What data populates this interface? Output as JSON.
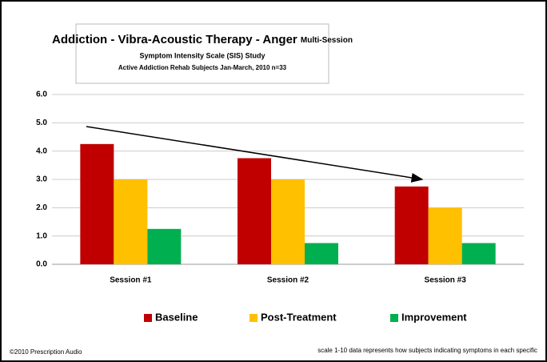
{
  "chart_data": {
    "type": "bar",
    "title": "Addiction - Vibra-Acoustic Therapy - Anger",
    "title_suffix": "Multi-Session",
    "subtitle": [
      "Symptom Intensity Scale (SIS) Study",
      "Active Addiction Rehab Subjects  Jan-March, 2010  n=33"
    ],
    "categories": [
      "Session #1",
      "Session #2",
      "Session #3"
    ],
    "series": [
      {
        "name": "Baseline",
        "color": "#c00000",
        "values": [
          4.25,
          3.75,
          2.75
        ]
      },
      {
        "name": "Post-Treatment",
        "color": "#ffc000",
        "values": [
          3.0,
          3.0,
          2.0
        ]
      },
      {
        "name": "Improvement",
        "color": "#00b050",
        "values": [
          1.25,
          0.75,
          0.75
        ]
      }
    ],
    "ylim": [
      0,
      6
    ],
    "yticks": [
      {
        "value": 0,
        "label": "0.0"
      },
      {
        "value": 1,
        "label": "1.0"
      },
      {
        "value": 2,
        "label": "2.0"
      },
      {
        "value": 3,
        "label": "3.0"
      },
      {
        "value": 4,
        "label": "4.0"
      },
      {
        "value": 5,
        "label": "5.0"
      },
      {
        "value": 6,
        "label": "6.0"
      }
    ],
    "grid": true,
    "legend": "bottom",
    "footer_left": "©2010 Prescription Audio",
    "footer_right": "scale 1-10   data represents how subjects indicating symptoms in each specific"
  }
}
